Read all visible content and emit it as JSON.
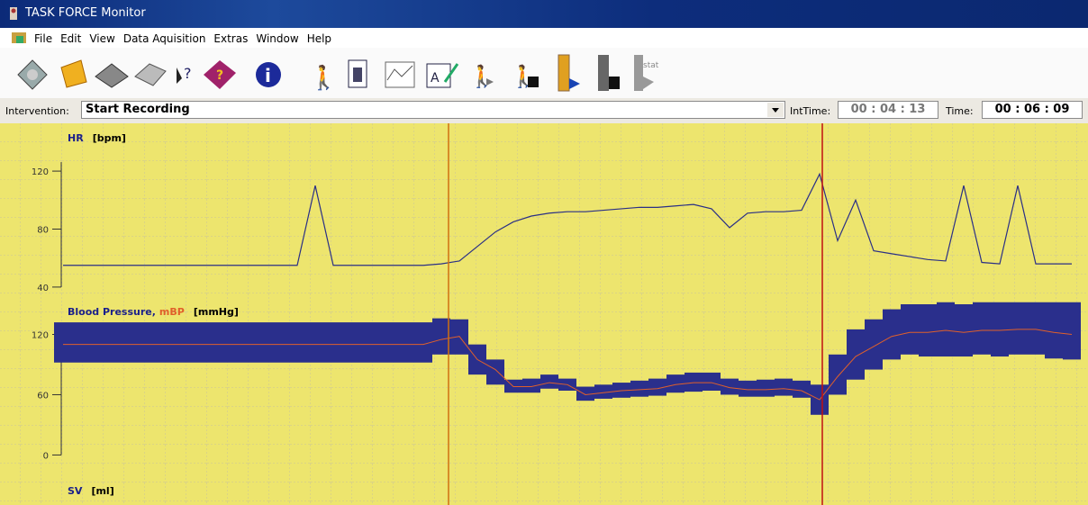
{
  "window": {
    "title": "TASK FORCE Monitor"
  },
  "menu": [
    "File",
    "Edit",
    "View",
    "Data Aquisition",
    "Extras",
    "Window",
    "Help"
  ],
  "toolbar": {
    "stat_label": "stat"
  },
  "intervention": {
    "label": "Intervention:",
    "value": "Start Recording",
    "int_time_label": "IntTime:",
    "int_time": "00 : 04 : 13",
    "time_label": "Time:",
    "time": "00 : 06 : 09"
  },
  "chart_data": [
    {
      "type": "line",
      "label": "HR",
      "unit": "[bpm]",
      "color": "#2a2f86",
      "ylim": [
        30,
        148
      ],
      "yticks": [
        40,
        80,
        120
      ],
      "values": [
        55,
        55,
        55,
        55,
        55,
        55,
        55,
        55,
        55,
        55,
        55,
        55,
        55,
        55,
        110,
        55,
        55,
        55,
        55,
        55,
        55,
        56,
        58,
        68,
        78,
        85,
        89,
        91,
        92,
        92,
        93,
        94,
        95,
        95,
        96,
        97,
        94,
        81,
        91,
        92,
        92,
        93,
        118,
        72,
        100,
        65,
        63,
        61,
        59,
        58,
        110,
        57,
        56,
        110,
        56,
        56,
        56
      ]
    },
    {
      "type": "range",
      "label": "Blood Pressure,",
      "mean_label": "mBP",
      "unit": "[mmHg]",
      "color": "#2a2f8c",
      "mean_color": "#e0602a",
      "ylim": [
        -22,
        150
      ],
      "yticks": [
        0,
        60,
        120
      ],
      "upper": [
        132,
        132,
        132,
        132,
        132,
        132,
        132,
        132,
        132,
        132,
        132,
        132,
        132,
        132,
        132,
        132,
        132,
        132,
        132,
        132,
        132,
        136,
        135,
        110,
        95,
        75,
        76,
        80,
        76,
        68,
        70,
        72,
        74,
        76,
        80,
        82,
        82,
        76,
        74,
        75,
        76,
        74,
        70,
        100,
        125,
        135,
        145,
        150,
        150,
        152,
        150,
        152,
        152,
        152,
        152,
        152,
        152
      ],
      "lower": [
        92,
        92,
        92,
        92,
        92,
        92,
        92,
        92,
        92,
        92,
        92,
        92,
        92,
        92,
        92,
        92,
        92,
        92,
        92,
        92,
        92,
        100,
        100,
        80,
        70,
        62,
        62,
        66,
        64,
        54,
        56,
        57,
        58,
        59,
        62,
        63,
        64,
        60,
        58,
        58,
        59,
        57,
        40,
        60,
        75,
        85,
        95,
        100,
        98,
        98,
        98,
        100,
        98,
        100,
        100,
        96,
        95
      ],
      "mean": [
        110,
        110,
        110,
        110,
        110,
        110,
        110,
        110,
        110,
        110,
        110,
        110,
        110,
        110,
        110,
        110,
        110,
        110,
        110,
        110,
        110,
        115,
        118,
        95,
        85,
        68,
        68,
        72,
        70,
        60,
        62,
        64,
        65,
        66,
        70,
        72,
        72,
        67,
        65,
        65,
        66,
        64,
        55,
        78,
        98,
        108,
        118,
        122,
        122,
        124,
        122,
        124,
        124,
        125,
        125,
        122,
        120
      ]
    },
    {
      "type": "line",
      "label": "SV",
      "unit": "[ml]"
    }
  ]
}
